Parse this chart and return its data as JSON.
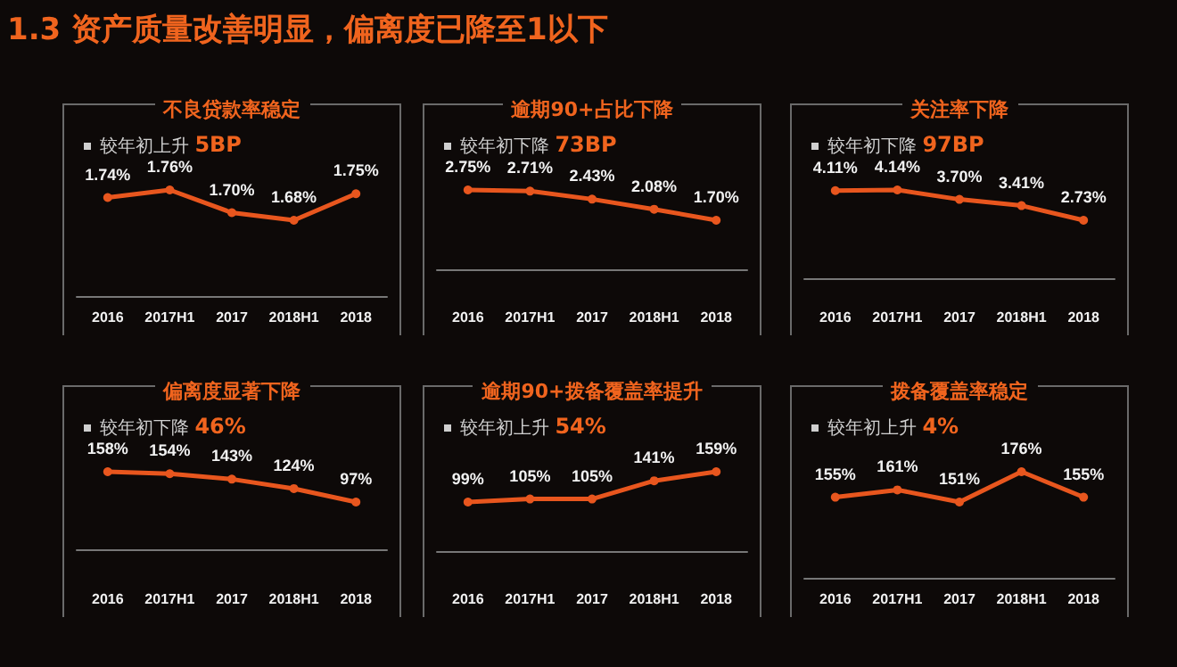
{
  "chart_data": [
    {
      "type": "other",
      "title": "1.3 资产质量改善明显，偏离度已降至1以下"
    },
    {
      "type": "line",
      "title": "不良贷款率稳定",
      "subtitle": "较年初上升 5BP",
      "categories": [
        "2016",
        "2017H1",
        "2017",
        "2018H1",
        "2018"
      ],
      "values": [
        1.74,
        1.76,
        1.7,
        1.68,
        1.75
      ],
      "value_labels": [
        "1.74%",
        "1.76%",
        "1.70%",
        "1.68%",
        "1.75%"
      ],
      "color": "#e8561e",
      "marker": "circle"
    },
    {
      "type": "line",
      "title": "逾期90+占比下降",
      "subtitle": "较年初下降 73BP",
      "categories": [
        "2016",
        "2017H1",
        "2017",
        "2018H1",
        "2018"
      ],
      "values": [
        2.75,
        2.71,
        2.43,
        2.08,
        1.7
      ],
      "value_labels": [
        "2.75%",
        "2.71%",
        "2.43%",
        "2.08%",
        "1.70%"
      ],
      "color": "#e8561e",
      "marker": "circle"
    },
    {
      "type": "line",
      "title": "关注率下降",
      "subtitle": "较年初下降 97BP",
      "categories": [
        "2016",
        "2017H1",
        "2017",
        "2018H1",
        "2018"
      ],
      "values": [
        4.11,
        4.14,
        3.7,
        3.41,
        2.73
      ],
      "value_labels": [
        "4.11%",
        "4.14%",
        "3.70%",
        "3.41%",
        "2.73%"
      ],
      "color": "#e8561e",
      "marker": "circle"
    },
    {
      "type": "line",
      "title": "偏离度显著下降",
      "subtitle": "较年初下降 46%",
      "categories": [
        "2016",
        "2017H1",
        "2017",
        "2018H1",
        "2018"
      ],
      "values": [
        158,
        154,
        143,
        124,
        97
      ],
      "value_labels": [
        "158%",
        "154%",
        "143%",
        "124%",
        "97%"
      ],
      "color": "#e8561e",
      "marker": "circle"
    },
    {
      "type": "line",
      "title": "逾期90+拨备覆盖率提升",
      "subtitle": "较年初上升 54%",
      "categories": [
        "2016",
        "2017H1",
        "2017",
        "2018H1",
        "2018"
      ],
      "values": [
        99,
        105,
        105,
        141,
        159
      ],
      "value_labels": [
        "99%",
        "105%",
        "105%",
        "141%",
        "159%"
      ],
      "color": "#e8561e",
      "marker": "circle"
    },
    {
      "type": "line",
      "title": "拨备覆盖率稳定",
      "subtitle": "较年初上升 4%",
      "categories": [
        "2016",
        "2017H1",
        "2017",
        "2018H1",
        "2018"
      ],
      "values": [
        155,
        161,
        151,
        176,
        155
      ],
      "value_labels": [
        "155%",
        "161%",
        "151%",
        "176%",
        "155%"
      ],
      "color": "#e8561e",
      "marker": "circle"
    }
  ]
}
